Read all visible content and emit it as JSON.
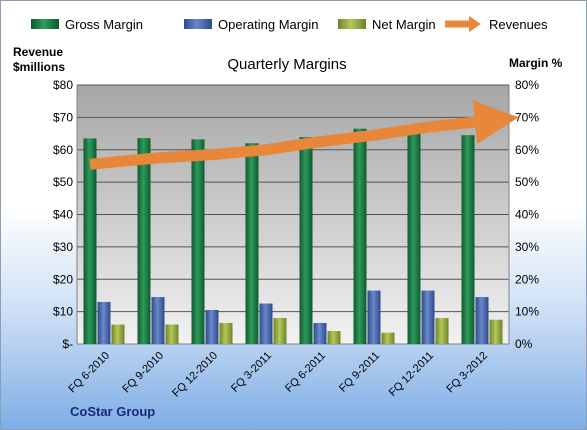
{
  "chart_data": {
    "type": "bar",
    "title": "Quarterly Margins",
    "categories": [
      "FQ 6-2010",
      "FQ 9-2010",
      "FQ 12-2010",
      "FQ 3-2011",
      "FQ 6-2011",
      "FQ 9-2011",
      "FQ 12-2011",
      "FQ 3-2012"
    ],
    "series": [
      {
        "name": "Gross Margin",
        "axis": "right",
        "type": "bar",
        "color": "#1e7a45",
        "values": [
          63.5,
          63.6,
          63.2,
          62.0,
          63.9,
          66.5,
          66.5,
          64.5
        ]
      },
      {
        "name": "Operating Margin",
        "axis": "right",
        "type": "bar",
        "color": "#3f5fa6",
        "values": [
          13.0,
          14.5,
          10.5,
          12.5,
          6.5,
          16.5,
          16.5,
          14.5
        ]
      },
      {
        "name": "Net Margin",
        "axis": "right",
        "type": "bar",
        "color": "#8fa53c",
        "values": [
          6.0,
          6.0,
          6.5,
          8.0,
          4.0,
          3.5,
          8.0,
          7.5
        ]
      },
      {
        "name": "Revenues",
        "axis": "left",
        "type": "line",
        "color": "#e8873a",
        "values": [
          55.5,
          57.5,
          58.5,
          60.0,
          62.5,
          64.5,
          67.0,
          69.0
        ]
      }
    ],
    "y_left": {
      "label_lines": [
        "Revenue",
        "$millions"
      ],
      "ticks": [
        "$-",
        "$10",
        "$20",
        "$30",
        "$40",
        "$50",
        "$60",
        "$70",
        "$80"
      ],
      "ylim": [
        0,
        80
      ]
    },
    "y_right": {
      "label": "Margin %",
      "ticks": [
        "0%",
        "10%",
        "20%",
        "30%",
        "40%",
        "50%",
        "60%",
        "70%",
        "80%"
      ],
      "ylim": [
        0,
        80
      ]
    },
    "legend_position": "top",
    "grid": true
  },
  "footer": "CoStar Group"
}
